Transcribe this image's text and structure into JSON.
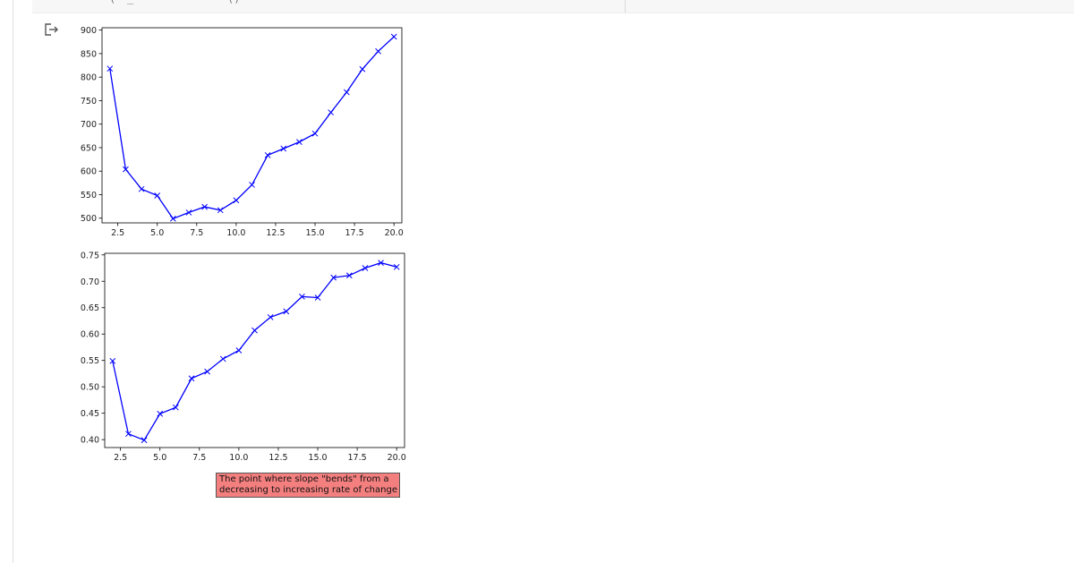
{
  "cell": {
    "code_fragments": [
      "(",
      "_",
      "()"
    ]
  },
  "output": {
    "icon": "output-redirect-icon",
    "annotation": {
      "lines": [
        "The point where slope \"bends\" from a",
        "decreasing to increasing rate of change"
      ],
      "background": "#f47f7f"
    }
  },
  "chart_data": [
    {
      "type": "line",
      "marker": "x",
      "color": "#0000ff",
      "x": [
        2,
        3,
        4,
        5,
        6,
        7,
        8,
        9,
        10,
        11,
        12,
        13,
        14,
        15,
        16,
        17,
        18,
        19,
        20
      ],
      "series": [
        {
          "values": [
            818,
            604,
            562,
            548,
            499,
            512,
            524,
            517,
            538,
            571,
            634,
            648,
            662,
            680,
            725,
            768,
            817,
            855,
            886
          ]
        }
      ],
      "xlim": [
        1.5,
        20.5
      ],
      "ylim": [
        490,
        905
      ],
      "xticks": [
        "2.5",
        "5.0",
        "7.5",
        "10.0",
        "12.5",
        "15.0",
        "17.5",
        "20.0"
      ],
      "yticks": [
        "500",
        "550",
        "600",
        "650",
        "700",
        "750",
        "800",
        "850",
        "900"
      ],
      "grid": false
    },
    {
      "type": "line",
      "marker": "x",
      "color": "#0000ff",
      "x": [
        2,
        3,
        4,
        5,
        6,
        7,
        8,
        9,
        10,
        11,
        12,
        13,
        14,
        15,
        16,
        17,
        18,
        19,
        20
      ],
      "series": [
        {
          "values": [
            0.549,
            0.411,
            0.399,
            0.449,
            0.461,
            0.516,
            0.529,
            0.553,
            0.569,
            0.607,
            0.632,
            0.643,
            0.671,
            0.669,
            0.707,
            0.711,
            0.725,
            0.735,
            0.727
          ]
        }
      ],
      "xlim": [
        1.5,
        20.5
      ],
      "ylim": [
        0.385,
        0.753
      ],
      "xticks": [
        "2.5",
        "5.0",
        "7.5",
        "10.0",
        "12.5",
        "15.0",
        "17.5",
        "20.0"
      ],
      "yticks": [
        "0.40",
        "0.45",
        "0.50",
        "0.55",
        "0.60",
        "0.65",
        "0.70",
        "0.75"
      ],
      "grid": false
    }
  ]
}
